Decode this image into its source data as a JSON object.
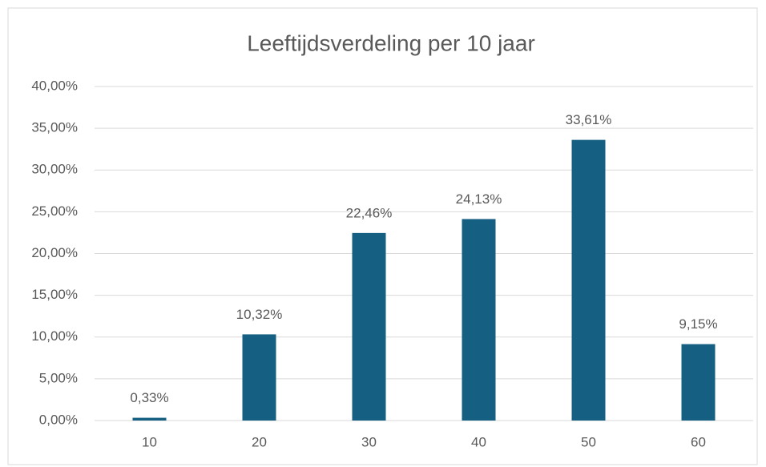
{
  "chart_data": {
    "type": "bar",
    "title": "Leeftijdsverdeling per 10 jaar",
    "categories": [
      "10",
      "20",
      "30",
      "40",
      "50",
      "60"
    ],
    "values": [
      0.33,
      10.32,
      22.46,
      24.13,
      33.61,
      9.15
    ],
    "value_labels": [
      "0,33%",
      "10,32%",
      "22,46%",
      "24,13%",
      "33,61%",
      "9,15%"
    ],
    "color": "#156082",
    "ylim": [
      0,
      40
    ],
    "yticks": [
      {
        "value": 0,
        "label": "0,00%"
      },
      {
        "value": 5,
        "label": "5,00%"
      },
      {
        "value": 10,
        "label": "10,00%"
      },
      {
        "value": 15,
        "label": "15,00%"
      },
      {
        "value": 20,
        "label": "20,00%"
      },
      {
        "value": 25,
        "label": "25,00%"
      },
      {
        "value": 30,
        "label": "30,00%"
      },
      {
        "value": 35,
        "label": "35,00%"
      },
      {
        "value": 40,
        "label": "40,00%"
      }
    ],
    "grid": true
  }
}
